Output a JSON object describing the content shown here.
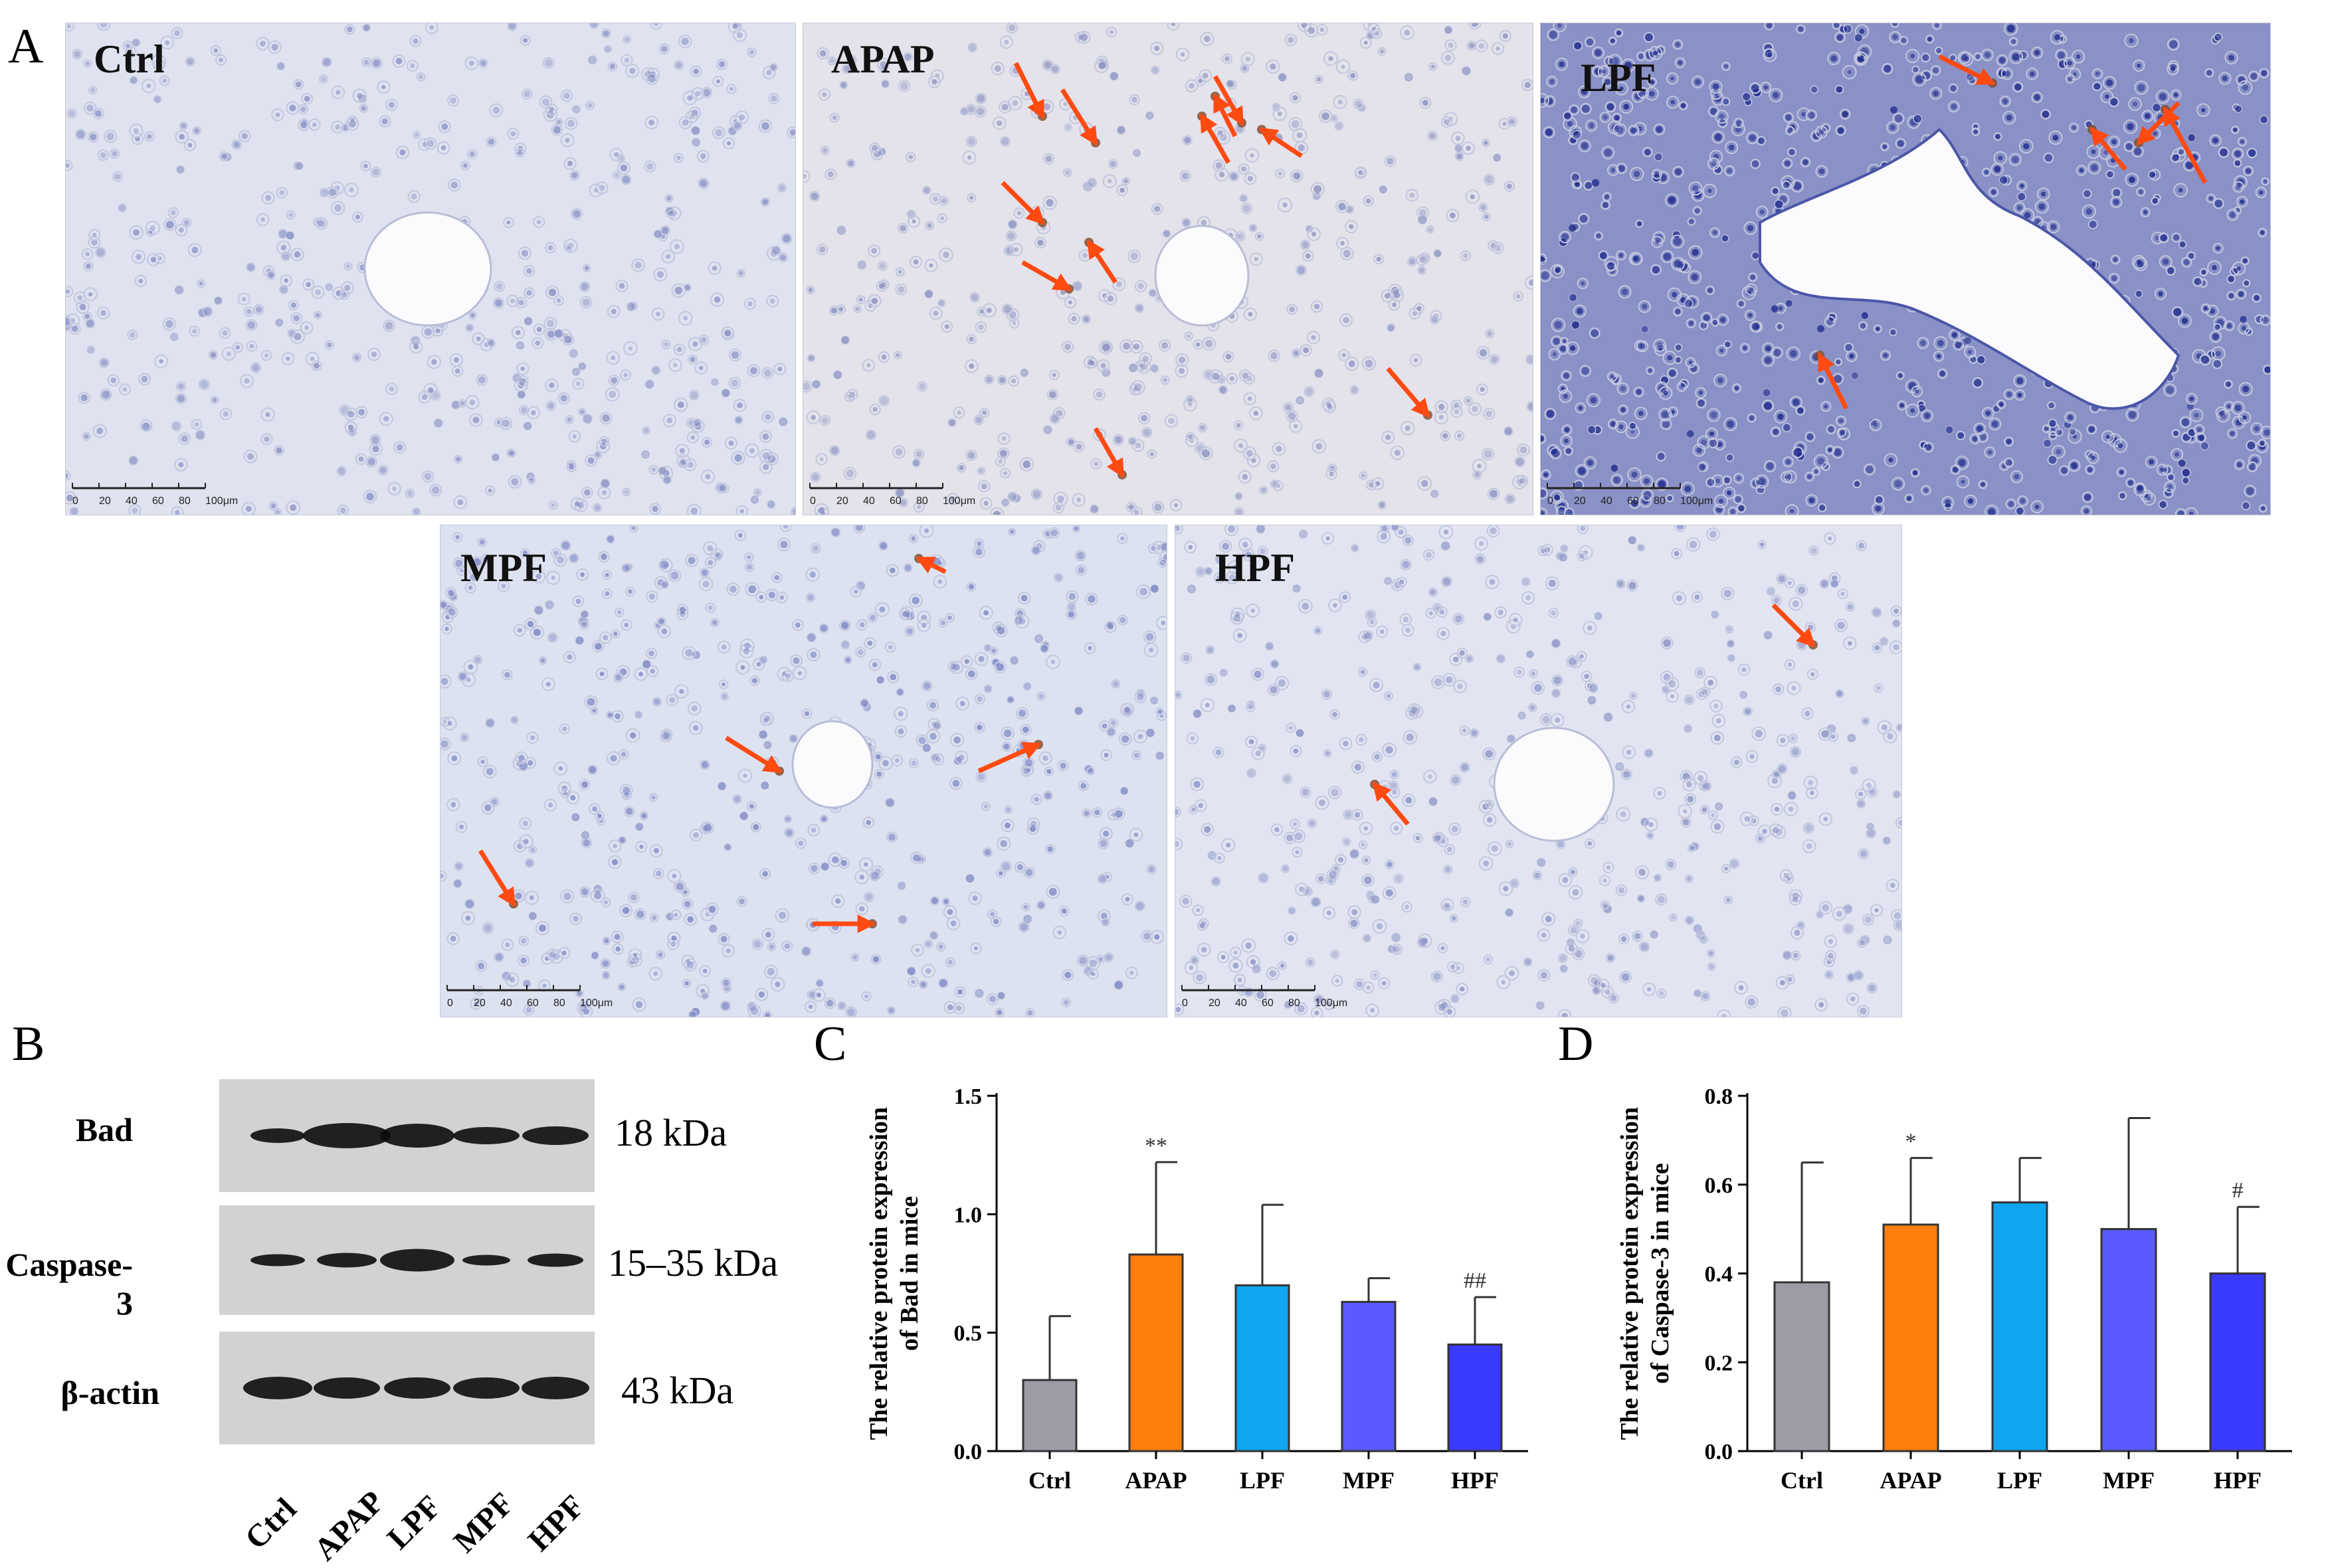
{
  "panel_letters": {
    "a": "A",
    "b": "B",
    "c": "C",
    "d": "D"
  },
  "micrographs": [
    {
      "label": "Ctrl",
      "scale": [
        "0",
        "20",
        "40",
        "60",
        "80",
        "100μm"
      ],
      "arrows": 0
    },
    {
      "label": "APAP",
      "scale": [
        "0",
        "20",
        "40",
        "60",
        "80",
        "100μm"
      ],
      "arrows": 11
    },
    {
      "label": "LPF",
      "scale": [
        "0",
        "20",
        "40",
        "60",
        "80",
        "100μm"
      ],
      "arrows": 5
    },
    {
      "label": "MPF",
      "scale": [
        "0",
        "20",
        "40",
        "60",
        "80",
        "100μm"
      ],
      "arrows": 5
    },
    {
      "label": "HPF",
      "scale": [
        "0",
        "20",
        "40",
        "60",
        "80",
        "100μm"
      ],
      "arrows": 2
    }
  ],
  "western_blot": {
    "rows": [
      {
        "protein": "Bad",
        "size": "18 kDa"
      },
      {
        "protein": "Caspase-3",
        "size": "15–35 kDa"
      },
      {
        "protein": "β-actin",
        "size": "43 kDa"
      }
    ],
    "lanes": [
      "Ctrl",
      "APAP",
      "LPF",
      "MPF",
      "HPF"
    ]
  },
  "colors": {
    "Ctrl": "#9c9ca6",
    "APAP": "#ff7f0e",
    "LPF": "#10a5ee",
    "MPF": "#5a5aff",
    "HPF": "#3a3aff",
    "arrow": "#ff4a12"
  },
  "chart_data": [
    {
      "type": "bar",
      "panel": "C",
      "categories": [
        "Ctrl",
        "APAP",
        "LPF",
        "MPF",
        "HPF"
      ],
      "values": [
        0.3,
        0.83,
        0.7,
        0.63,
        0.45
      ],
      "error": [
        0.27,
        0.39,
        0.34,
        0.1,
        0.2
      ],
      "annotations": [
        "",
        "**",
        "",
        "",
        "##"
      ],
      "ylabel_line1": "The relative protein expression",
      "ylabel_line2": "of Bad in mice",
      "ylim": [
        0,
        1.5
      ],
      "yticks": [
        "0.0",
        "0.5",
        "1.0",
        "1.5"
      ]
    },
    {
      "type": "bar",
      "panel": "D",
      "categories": [
        "Ctrl",
        "APAP",
        "LPF",
        "MPF",
        "HPF"
      ],
      "values": [
        0.38,
        0.51,
        0.56,
        0.5,
        0.4
      ],
      "error": [
        0.27,
        0.15,
        0.1,
        0.25,
        0.15
      ],
      "annotations": [
        "",
        "*",
        "",
        "",
        "#"
      ],
      "ylabel_line1": "The relative protein expression",
      "ylabel_line2": "of Caspase-3 in mice",
      "ylim": [
        0,
        0.8
      ],
      "yticks": [
        "0.0",
        "0.2",
        "0.4",
        "0.6",
        "0.8"
      ]
    }
  ]
}
